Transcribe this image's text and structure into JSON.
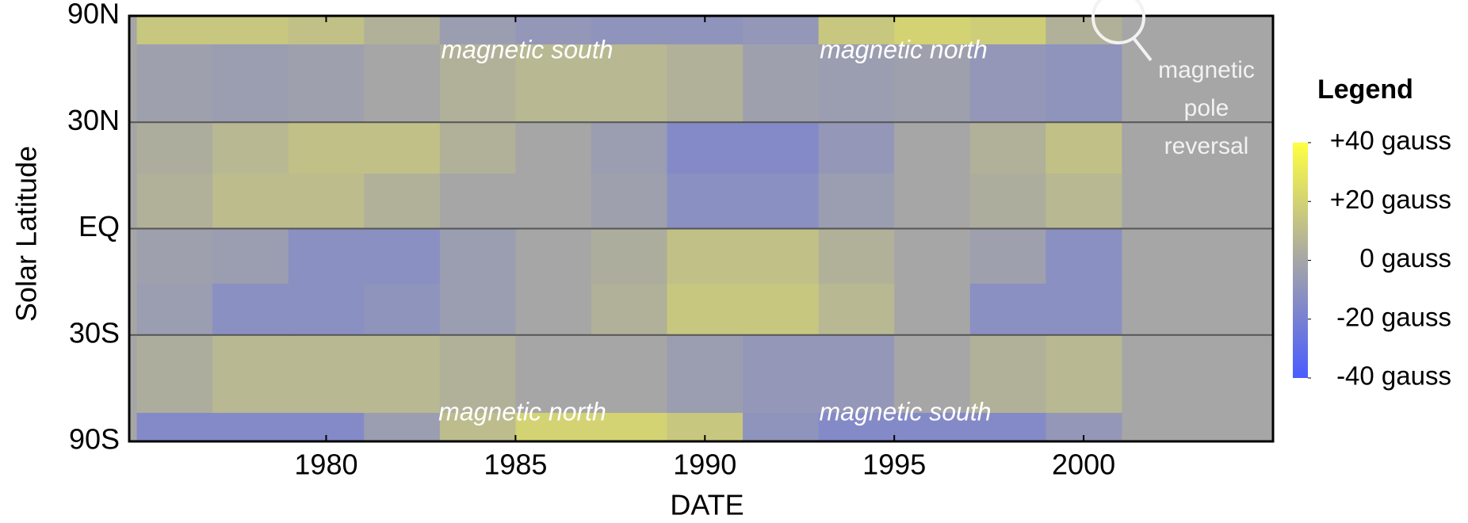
{
  "chart_data": {
    "type": "heatmap",
    "y_label": "Solar Latitude",
    "x_label": "DATE",
    "xlim": [
      1974.8,
      2005
    ],
    "xticks": [
      1980,
      1985,
      1990,
      1995,
      2000
    ],
    "ylim": [
      -90,
      90
    ],
    "yscale": "sine",
    "yticks": [
      {
        "value": 90,
        "label": "90N"
      },
      {
        "value": 30,
        "label": "30N"
      },
      {
        "value": 0,
        "label": "EQ"
      },
      {
        "value": -30,
        "label": "30S"
      },
      {
        "value": -90,
        "label": "90S"
      }
    ],
    "grid": true,
    "x_bins": [
      1975,
      1977,
      1979,
      1981,
      1983,
      1985,
      1987,
      1989,
      1991,
      1993,
      1995,
      1997,
      1999,
      2001
    ],
    "y_bins": [
      90,
      60,
      30,
      15,
      0,
      -15,
      -30,
      -60,
      -90
    ],
    "z": [
      [
        15,
        15,
        12,
        5,
        -5,
        -8,
        -10,
        -10,
        -8,
        15,
        20,
        18,
        5
      ],
      [
        -3,
        -5,
        -3,
        0,
        5,
        8,
        8,
        5,
        -3,
        -5,
        -3,
        -8,
        -10
      ],
      [
        3,
        8,
        12,
        12,
        5,
        0,
        -5,
        -15,
        -15,
        -8,
        0,
        5,
        12
      ],
      [
        5,
        10,
        10,
        5,
        0,
        0,
        -3,
        -12,
        -12,
        -5,
        0,
        3,
        8
      ],
      [
        -3,
        -5,
        -12,
        -12,
        -5,
        0,
        3,
        12,
        12,
        5,
        0,
        -3,
        -12
      ],
      [
        -5,
        -12,
        -12,
        -10,
        -5,
        0,
        5,
        15,
        15,
        8,
        0,
        -12,
        -12
      ],
      [
        3,
        8,
        8,
        8,
        5,
        0,
        0,
        -5,
        -8,
        -8,
        0,
        5,
        8
      ],
      [
        -15,
        -15,
        -15,
        -5,
        10,
        20,
        20,
        15,
        -10,
        -15,
        -15,
        -15,
        -8
      ]
    ],
    "colorscale": [
      "#4a5cff",
      "#a6a6a6",
      "#ffff40"
    ],
    "clim": [
      -40,
      40
    ],
    "legend_title": "Legend",
    "legend_ticks": [
      {
        "value": 40,
        "label": "+40 gauss"
      },
      {
        "value": 20,
        "label": "+20 gauss"
      },
      {
        "value": 0,
        "label": "0 gauss"
      },
      {
        "value": -20,
        "label": "-20 gauss"
      },
      {
        "value": -40,
        "label": "-40 gauss"
      }
    ],
    "annotations": [
      "magnetic south",
      "magnetic north",
      "magnetic north",
      "magnetic south"
    ],
    "callout": [
      "magnetic",
      "pole",
      "reversal"
    ]
  }
}
